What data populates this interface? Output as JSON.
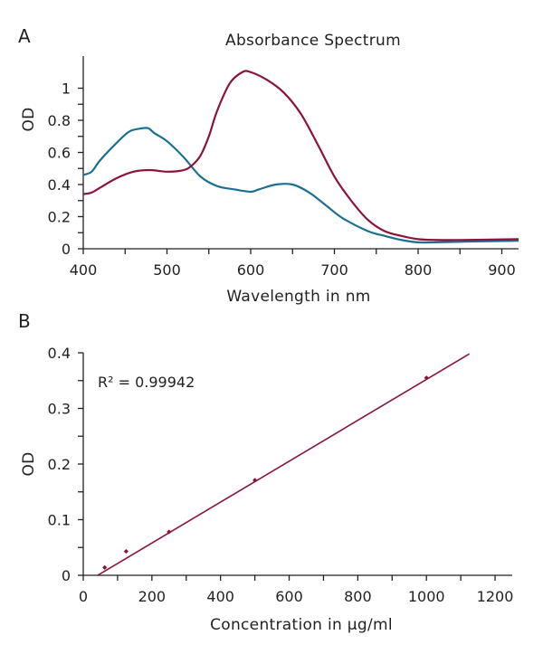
{
  "chart_data": [
    {
      "panel": "A",
      "type": "line",
      "title": "Absorbance Spectrum",
      "xlabel": "Wavelength in nm",
      "ylabel": "OD",
      "xlim": [
        400,
        920
      ],
      "ylim": [
        0,
        1.2
      ],
      "xticks": [
        400,
        500,
        600,
        700,
        800,
        900
      ],
      "yticks": [
        0,
        0.2,
        0.4,
        0.6,
        0.8,
        1
      ],
      "grid": false,
      "series": [
        {
          "color": "#1b6f94",
          "x": [
            400,
            410,
            420,
            440,
            455,
            470,
            478,
            485,
            500,
            520,
            540,
            560,
            580,
            600,
            610,
            630,
            650,
            670,
            690,
            710,
            740,
            760,
            780,
            800,
            820,
            860,
            920
          ],
          "y": [
            0.46,
            0.48,
            0.55,
            0.66,
            0.73,
            0.75,
            0.75,
            0.72,
            0.67,
            0.57,
            0.45,
            0.39,
            0.37,
            0.355,
            0.37,
            0.4,
            0.4,
            0.35,
            0.27,
            0.19,
            0.11,
            0.08,
            0.055,
            0.04,
            0.04,
            0.045,
            0.05
          ]
        },
        {
          "color": "#8b1538",
          "x": [
            400,
            410,
            420,
            440,
            460,
            480,
            500,
            520,
            530,
            540,
            550,
            560,
            575,
            590,
            600,
            620,
            640,
            660,
            680,
            700,
            720,
            740,
            760,
            780,
            800,
            820,
            860,
            920
          ],
          "y": [
            0.34,
            0.35,
            0.38,
            0.44,
            0.48,
            0.49,
            0.48,
            0.49,
            0.52,
            0.58,
            0.7,
            0.86,
            1.03,
            1.1,
            1.1,
            1.05,
            0.97,
            0.84,
            0.65,
            0.45,
            0.3,
            0.18,
            0.11,
            0.08,
            0.06,
            0.055,
            0.055,
            0.06
          ]
        }
      ]
    },
    {
      "panel": "B",
      "type": "scatter",
      "xlabel": "Concentration in μg/ml",
      "ylabel": "OD",
      "xlim": [
        0,
        1250
      ],
      "ylim": [
        0,
        0.4
      ],
      "xticks": [
        0,
        200,
        400,
        600,
        800,
        1000,
        1200
      ],
      "yticks": [
        0,
        0.1,
        0.2,
        0.3,
        0.4
      ],
      "grid": false,
      "annotation": "R² = 0.99942",
      "color": "#8b1538",
      "points": {
        "x": [
          62.5,
          125,
          250,
          500,
          1000
        ],
        "y": [
          0.014,
          0.043,
          0.078,
          0.171,
          0.355
        ]
      },
      "trendline": {
        "x": [
          42,
          1125
        ],
        "y": [
          0,
          0.398
        ]
      }
    }
  ]
}
